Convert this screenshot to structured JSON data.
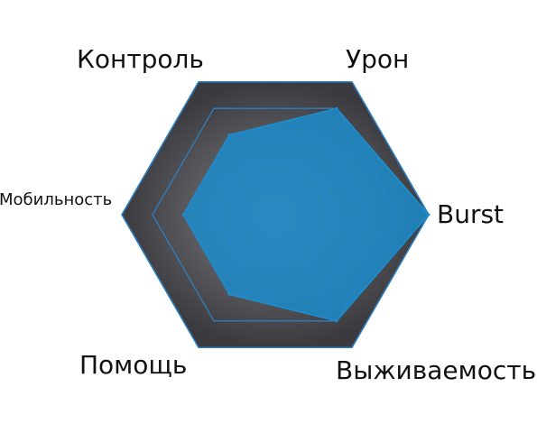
{
  "chart_data": {
    "type": "radar",
    "axes": [
      "Урон",
      "Burst",
      "Выживаемость",
      "Помощь",
      "Мобильность",
      "Контроль"
    ],
    "values": [
      0.8,
      1.0,
      0.8,
      0.6,
      0.6,
      0.6
    ],
    "range": [
      0,
      1
    ],
    "rings": 5,
    "grid": true,
    "colors": {
      "background_outer": "#3b3b3f",
      "background_inner": "#5a5a5f",
      "center": "#7c6c7a",
      "grid_line": "#2e7fc1",
      "series_fill": "#1a8fd0",
      "series_fill_opacity": 0.82
    }
  }
}
